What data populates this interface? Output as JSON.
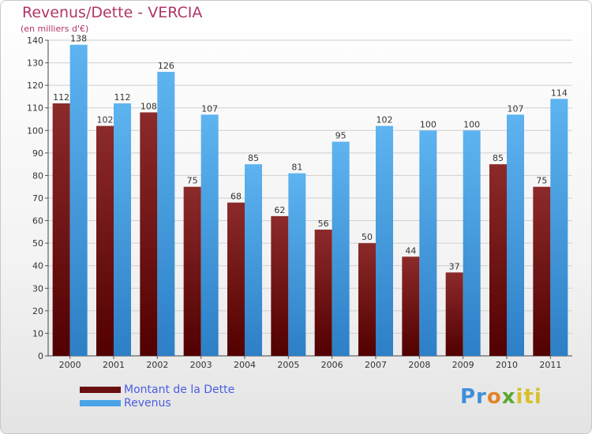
{
  "chart_data": {
    "type": "bar",
    "title": "Revenus/Dette - VERCIA",
    "subtitle": "(en milliers d'€)",
    "categories": [
      "2000",
      "2001",
      "2002",
      "2003",
      "2004",
      "2005",
      "2006",
      "2007",
      "2008",
      "2009",
      "2010",
      "2011"
    ],
    "series": [
      {
        "name": "Montant de la Dette",
        "color": "#7a1a1a",
        "values": [
          112,
          102,
          108,
          75,
          68,
          62,
          56,
          50,
          44,
          37,
          85,
          75
        ]
      },
      {
        "name": "Revenus",
        "color": "#4aa3e6",
        "values": [
          138,
          112,
          126,
          107,
          85,
          81,
          95,
          102,
          100,
          100,
          107,
          114
        ]
      }
    ],
    "ylim": [
      0,
      140
    ],
    "yticks": [
      0,
      10,
      20,
      30,
      40,
      50,
      60,
      70,
      80,
      90,
      100,
      110,
      120,
      130,
      140
    ],
    "grid": true,
    "legend_position": "bottom-left"
  },
  "brand": {
    "parts": [
      "Pr",
      "o",
      "x",
      "iti"
    ]
  }
}
